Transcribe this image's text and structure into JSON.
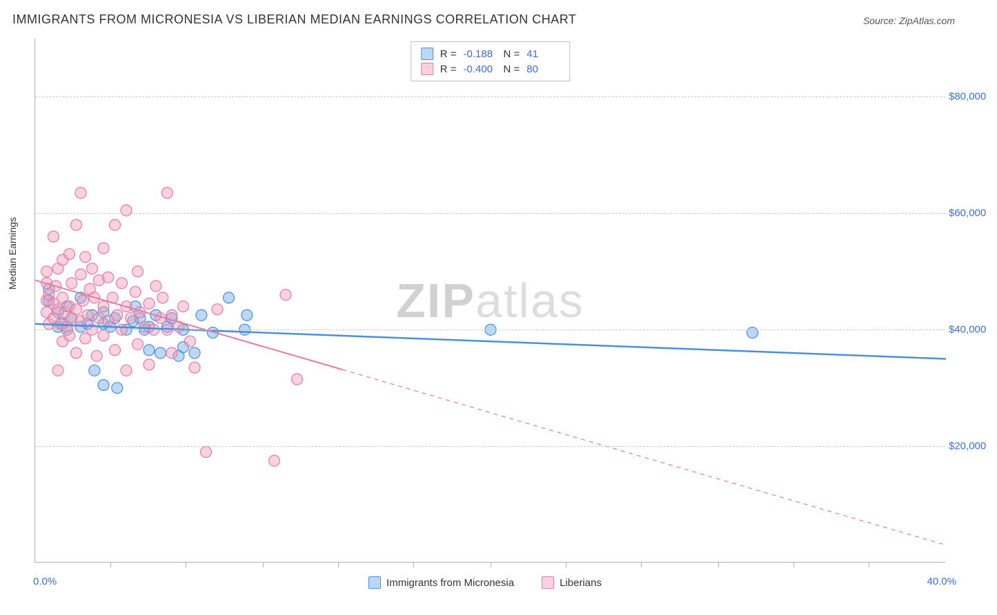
{
  "title": "IMMIGRANTS FROM MICRONESIA VS LIBERIAN MEDIAN EARNINGS CORRELATION CHART",
  "source": "Source: ZipAtlas.com",
  "watermark": {
    "part1": "ZIP",
    "part2": "atlas"
  },
  "chart": {
    "type": "scatter-with-trend",
    "ylabel": "Median Earnings",
    "background_color": "#ffffff",
    "grid_color": "#c8c8c8",
    "axis_color": "#b0b0b0",
    "label_color": "#3a6fd8",
    "xlim": [
      0,
      40
    ],
    "ylim": [
      0,
      90000
    ],
    "xaxis_min_label": "0.0%",
    "xaxis_max_label": "40.0%",
    "yticks": [
      {
        "v": 20000,
        "label": "$20,000"
      },
      {
        "v": 40000,
        "label": "$40,000"
      },
      {
        "v": 60000,
        "label": "$60,000"
      },
      {
        "v": 80000,
        "label": "$80,000"
      }
    ],
    "xticks": [
      3.3,
      6.6,
      10,
      13.3,
      16.6,
      20,
      23.3,
      26.6,
      30,
      33.3,
      36.6
    ],
    "marker_radius": 8,
    "marker_opacity": 0.55,
    "series": [
      {
        "name": "Immigrants from Micronesia",
        "color": "#6da6e8",
        "fill": "rgba(109,166,232,0.45)",
        "stroke": "#4a8fdc",
        "R": "-0.188",
        "N": "41",
        "trend": {
          "y_at_xmin": 41000,
          "y_at_xmax": 35000,
          "solid_to_x": 40,
          "width": 2.5
        },
        "points": [
          [
            0.6,
            45000
          ],
          [
            0.6,
            47000
          ],
          [
            1.0,
            43000
          ],
          [
            1.0,
            40500
          ],
          [
            1.2,
            41000
          ],
          [
            1.4,
            44000
          ],
          [
            1.6,
            42000
          ],
          [
            1.4,
            40000
          ],
          [
            2.0,
            40500
          ],
          [
            2.0,
            45500
          ],
          [
            2.3,
            41000
          ],
          [
            2.5,
            42500
          ],
          [
            2.6,
            33000
          ],
          [
            3.0,
            41000
          ],
          [
            3.0,
            30500
          ],
          [
            3.0,
            43000
          ],
          [
            3.3,
            40500
          ],
          [
            3.5,
            42000
          ],
          [
            3.6,
            30000
          ],
          [
            4.0,
            40000
          ],
          [
            4.3,
            41500
          ],
          [
            4.4,
            44000
          ],
          [
            4.6,
            42000
          ],
          [
            4.8,
            40000
          ],
          [
            5.0,
            36500
          ],
          [
            5.0,
            40500
          ],
          [
            5.3,
            42500
          ],
          [
            5.5,
            36000
          ],
          [
            5.8,
            40500
          ],
          [
            6.0,
            42000
          ],
          [
            6.3,
            35500
          ],
          [
            6.5,
            37000
          ],
          [
            6.5,
            40000
          ],
          [
            7.0,
            36000
          ],
          [
            7.3,
            42500
          ],
          [
            7.8,
            39500
          ],
          [
            8.5,
            45500
          ],
          [
            9.2,
            40000
          ],
          [
            9.3,
            42500
          ],
          [
            20.0,
            40000
          ],
          [
            31.5,
            39500
          ]
        ]
      },
      {
        "name": "Liberians",
        "color": "#f09eb9",
        "fill": "rgba(240,158,185,0.45)",
        "stroke": "#e77aa0",
        "R": "-0.400",
        "N": "80",
        "trend": {
          "y_at_xmin": 48500,
          "y_at_xmax": 3000,
          "solid_to_x": 13.5,
          "width": 2
        },
        "points": [
          [
            0.5,
            48000
          ],
          [
            0.5,
            45000
          ],
          [
            0.5,
            43000
          ],
          [
            0.5,
            50000
          ],
          [
            0.6,
            41000
          ],
          [
            0.6,
            46000
          ],
          [
            0.8,
            56000
          ],
          [
            0.8,
            44500
          ],
          [
            0.8,
            42000
          ],
          [
            0.9,
            47500
          ],
          [
            1.0,
            43500
          ],
          [
            1.0,
            50500
          ],
          [
            1.0,
            33000
          ],
          [
            1.1,
            41000
          ],
          [
            1.2,
            45500
          ],
          [
            1.2,
            38000
          ],
          [
            1.2,
            52000
          ],
          [
            1.3,
            43000
          ],
          [
            1.4,
            40500
          ],
          [
            1.5,
            53000
          ],
          [
            1.5,
            44000
          ],
          [
            1.5,
            39000
          ],
          [
            1.6,
            42000
          ],
          [
            1.6,
            48000
          ],
          [
            1.8,
            58000
          ],
          [
            1.8,
            43500
          ],
          [
            1.8,
            36000
          ],
          [
            2.0,
            49500
          ],
          [
            2.0,
            41500
          ],
          [
            2.0,
            63500
          ],
          [
            2.1,
            45000
          ],
          [
            2.2,
            52500
          ],
          [
            2.2,
            38500
          ],
          [
            2.3,
            42500
          ],
          [
            2.4,
            47000
          ],
          [
            2.5,
            50500
          ],
          [
            2.5,
            40000
          ],
          [
            2.6,
            45500
          ],
          [
            2.7,
            35500
          ],
          [
            2.8,
            48500
          ],
          [
            2.8,
            42000
          ],
          [
            3.0,
            54000
          ],
          [
            3.0,
            44000
          ],
          [
            3.0,
            39000
          ],
          [
            3.2,
            49000
          ],
          [
            3.2,
            41500
          ],
          [
            3.4,
            45500
          ],
          [
            3.5,
            58000
          ],
          [
            3.5,
            36500
          ],
          [
            3.6,
            42500
          ],
          [
            3.8,
            48000
          ],
          [
            3.8,
            40000
          ],
          [
            4.0,
            44000
          ],
          [
            4.0,
            60500
          ],
          [
            4.0,
            33000
          ],
          [
            4.2,
            42000
          ],
          [
            4.4,
            46500
          ],
          [
            4.5,
            50000
          ],
          [
            4.5,
            37500
          ],
          [
            4.6,
            43000
          ],
          [
            4.8,
            40500
          ],
          [
            5.0,
            44500
          ],
          [
            5.0,
            34000
          ],
          [
            5.2,
            40000
          ],
          [
            5.3,
            47500
          ],
          [
            5.5,
            42000
          ],
          [
            5.6,
            45500
          ],
          [
            5.8,
            40000
          ],
          [
            5.8,
            63500
          ],
          [
            6.0,
            36000
          ],
          [
            6.0,
            42500
          ],
          [
            6.3,
            40500
          ],
          [
            6.5,
            44000
          ],
          [
            6.8,
            38000
          ],
          [
            7.0,
            33500
          ],
          [
            7.5,
            19000
          ],
          [
            8.0,
            43500
          ],
          [
            11.0,
            46000
          ],
          [
            11.5,
            31500
          ],
          [
            10.5,
            17500
          ]
        ]
      }
    ]
  }
}
